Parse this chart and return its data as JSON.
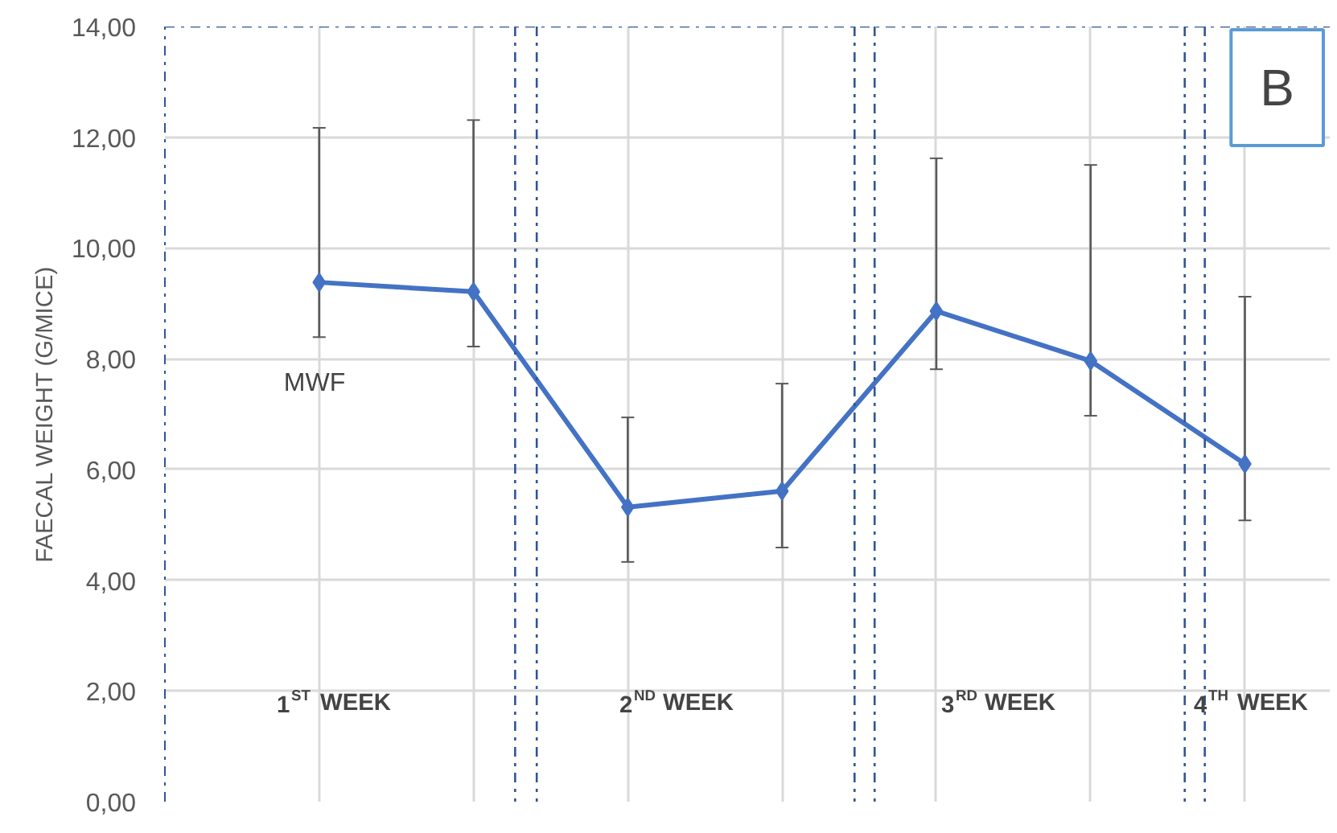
{
  "chart_data": {
    "type": "line",
    "ylabel": "FAECAL WEIGHT (G/MICE)",
    "categories": [
      null,
      null,
      null,
      null,
      null,
      null,
      null
    ],
    "ylim": [
      0,
      14
    ],
    "yticks": [
      {
        "value": 0,
        "label": "0,00"
      },
      {
        "value": 2,
        "label": "2,00"
      },
      {
        "value": 4,
        "label": "4,00"
      },
      {
        "value": 6,
        "label": "6,00"
      },
      {
        "value": 8,
        "label": "8,00"
      },
      {
        "value": 10,
        "label": "10,00"
      },
      {
        "value": 12,
        "label": "12,00"
      },
      {
        "value": 14,
        "label": "14,00"
      }
    ],
    "series": [
      {
        "color": "#4472c4",
        "values": [
          9.38,
          9.21,
          5.32,
          5.61,
          8.86,
          7.96,
          6.1
        ],
        "errors": [
          [
            8.39,
            12.17
          ],
          [
            8.22,
            12.31
          ],
          [
            4.33,
            6.94
          ],
          [
            4.59,
            7.55
          ],
          [
            7.81,
            11.62
          ],
          [
            6.97,
            11.5
          ],
          [
            5.08,
            9.12
          ]
        ]
      }
    ],
    "marker": "diamond",
    "grid": true,
    "tick_labels": "y",
    "ref_lines": [
      {
        "axis": "y",
        "value": 14,
        "color": "#2f5597",
        "line_style": "dashdot"
      }
    ],
    "annotations": [
      "MWF",
      "1$^{ST}$ WEEK",
      "2$^{ND}$ WEEK",
      "3$^{RD}$ WEEK",
      "4$^{TH}$ WEEK",
      "B"
    ]
  }
}
